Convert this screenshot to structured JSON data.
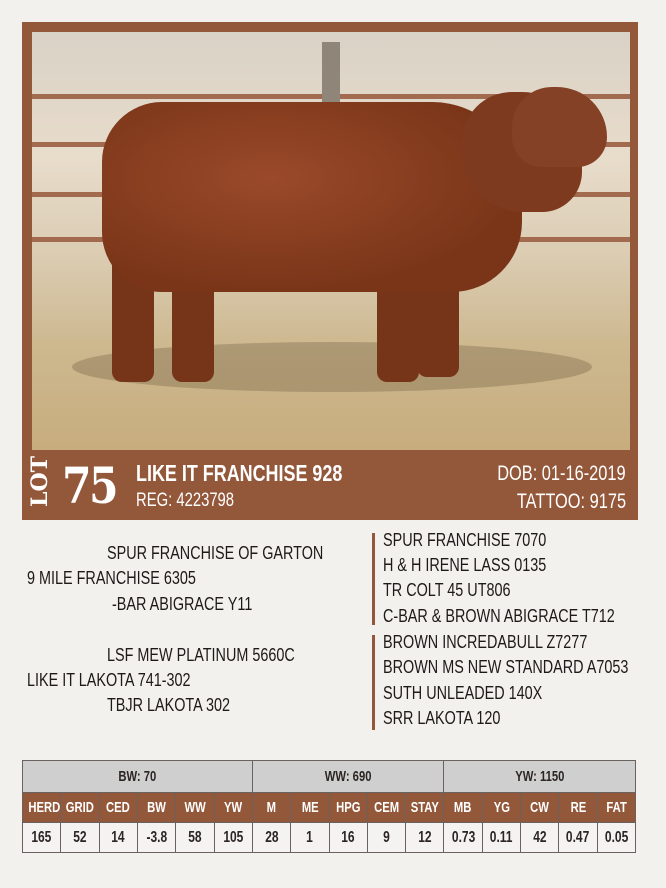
{
  "lot": {
    "label": "LOT",
    "number": "75",
    "name": "LIKE IT FRANCHISE 928",
    "reg": "REG: 4223798",
    "dob": "DOB: 01-16-2019",
    "tattoo": "TATTOO: 9175"
  },
  "colors": {
    "brand_brown": "#93573a",
    "group_header_gray": "#d0cfcf"
  },
  "pedigree": {
    "sire_side": {
      "sire": "SPUR FRANCHISE OF GARTON",
      "animal": "9 MILE FRANCHISE 6305",
      "dam": "-BAR ABIGRACE Y11"
    },
    "dam_side": {
      "sire": "LSF MEW PLATINUM 5660C",
      "animal": "LIKE IT LAKOTA 741-302",
      "dam": "TBJR LAKOTA 302"
    },
    "ancestors_top": [
      "SPUR FRANCHISE 7070",
      "H & H IRENE LASS 0135",
      "TR COLT 45 UT806",
      "C-BAR & BROWN ABIGRACE T712"
    ],
    "ancestors_bottom": [
      "BROWN INCREDABULL Z7277",
      "BROWN MS NEW STANDARD A7053",
      "SUTH UNLEADED 140X",
      "SRR LAKOTA 120"
    ]
  },
  "performance": {
    "groups": [
      {
        "label": "BW: 70",
        "span": 6
      },
      {
        "label": "WW: 690",
        "span": 5
      },
      {
        "label": "YW: 1150",
        "span": 5
      }
    ],
    "headers": [
      "HERD",
      "GRID",
      "CED",
      "BW",
      "WW",
      "YW",
      "M",
      "ME",
      "HPG",
      "CEM",
      "STAY",
      "MB",
      "YG",
      "CW",
      "RE",
      "FAT"
    ],
    "values": [
      "165",
      "52",
      "14",
      "-3.8",
      "58",
      "105",
      "28",
      "1",
      "16",
      "9",
      "12",
      "0.73",
      "0.11",
      "42",
      "0.47",
      "0.05"
    ]
  }
}
